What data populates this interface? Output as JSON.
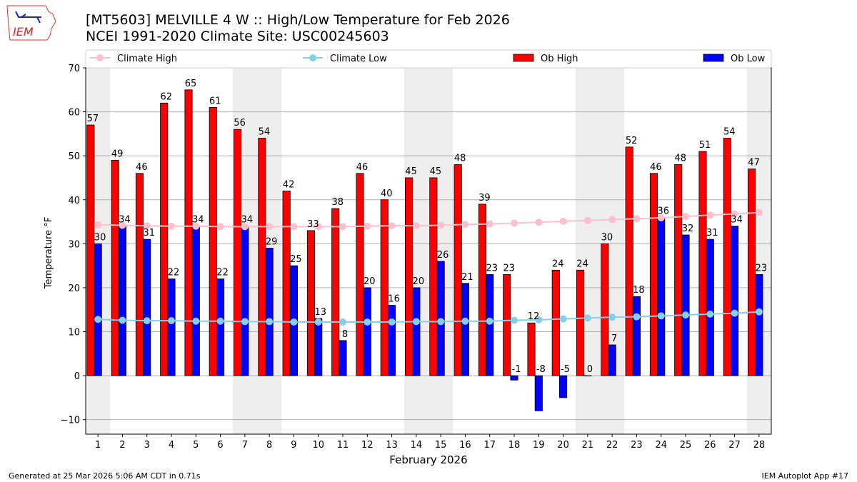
{
  "header": {
    "title_line1": "[MT5603] MELVILLE 4 W :: High/Low Temperature for Feb 2026",
    "title_line2": "NCEI 1991-2020 Climate Site: USC00245603",
    "logo_text": "IEM"
  },
  "footer": {
    "left": "Generated at 25 Mar 2026 5:06 AM CDT in 0.71s",
    "right": "IEM Autoplot App #17"
  },
  "chart_data": {
    "type": "bar",
    "xlabel": "February 2026",
    "ylabel": "Temperature °F",
    "ylim": [
      -13.3,
      70
    ],
    "xlim": [
      0.5,
      28.5
    ],
    "yticks": [
      -10,
      0,
      10,
      20,
      30,
      40,
      50,
      60,
      70
    ],
    "grid": true,
    "legend_placement": "top",
    "weekend_shaded_days": [
      1,
      7,
      8,
      14,
      15,
      21,
      22,
      28
    ],
    "days": [
      1,
      2,
      3,
      4,
      5,
      6,
      7,
      8,
      9,
      10,
      11,
      12,
      13,
      14,
      15,
      16,
      17,
      18,
      19,
      20,
      21,
      22,
      23,
      24,
      25,
      26,
      27,
      28
    ],
    "series": [
      {
        "name": "Ob High",
        "type": "bar",
        "color": "#ff0000",
        "values": [
          57,
          49,
          46,
          62,
          65,
          61,
          56,
          54,
          42,
          33,
          38,
          46,
          40,
          45,
          45,
          48,
          39,
          23,
          12,
          24,
          24,
          30,
          52,
          46,
          48,
          51,
          54,
          47
        ]
      },
      {
        "name": "Ob Low",
        "type": "bar",
        "color": "#0000ff",
        "values": [
          30,
          34,
          31,
          22,
          34,
          22,
          34,
          29,
          25,
          13,
          8,
          20,
          16,
          20,
          26,
          21,
          23,
          -1,
          -8,
          -5,
          0,
          7,
          18,
          36,
          32,
          31,
          34,
          23
        ]
      },
      {
        "name": "Climate High",
        "type": "line",
        "color": "#ffc0cb",
        "values": [
          34.3,
          34.2,
          34.1,
          34.0,
          34.0,
          33.9,
          33.9,
          33.9,
          33.9,
          33.9,
          33.9,
          34.0,
          34.1,
          34.1,
          34.2,
          34.4,
          34.5,
          34.7,
          34.9,
          35.1,
          35.3,
          35.5,
          35.7,
          35.9,
          36.2,
          36.5,
          36.8,
          37.1
        ]
      },
      {
        "name": "Climate Low",
        "type": "line",
        "color": "#87ceeb",
        "values": [
          12.8,
          12.6,
          12.5,
          12.5,
          12.4,
          12.4,
          12.3,
          12.3,
          12.2,
          12.2,
          12.2,
          12.2,
          12.2,
          12.3,
          12.3,
          12.4,
          12.4,
          12.6,
          12.7,
          12.9,
          13.1,
          13.3,
          13.4,
          13.6,
          13.8,
          14.0,
          14.2,
          14.5
        ]
      }
    ]
  }
}
